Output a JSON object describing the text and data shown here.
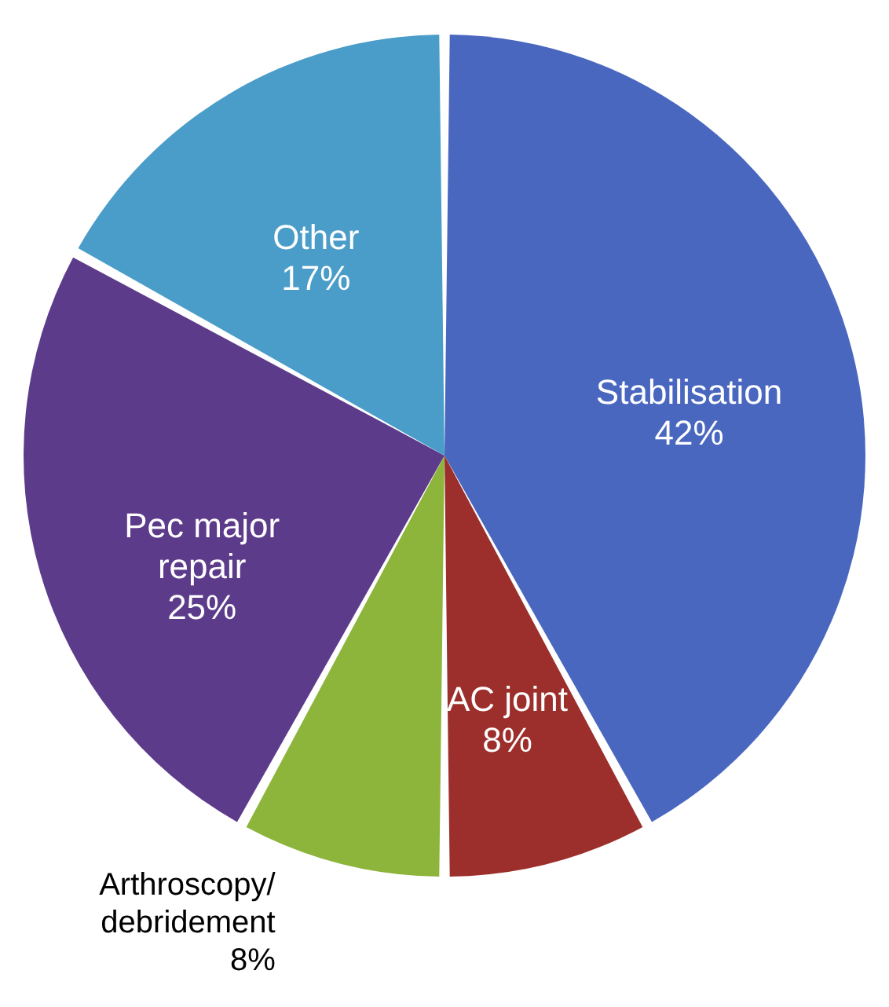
{
  "chart_data": {
    "type": "pie",
    "categories": [
      "Stabilisation",
      "AC joint",
      "Arthroscopy/debridement",
      "Pec major repair",
      "Other"
    ],
    "values": [
      42,
      8,
      8,
      25,
      17
    ],
    "value_labels": [
      "42%",
      "8%",
      "8%",
      "25%",
      "17%"
    ],
    "colors": [
      "#4a67c0",
      "#9c2f2b",
      "#8db43b",
      "#5d3b8b",
      "#4b9dc9"
    ]
  }
}
